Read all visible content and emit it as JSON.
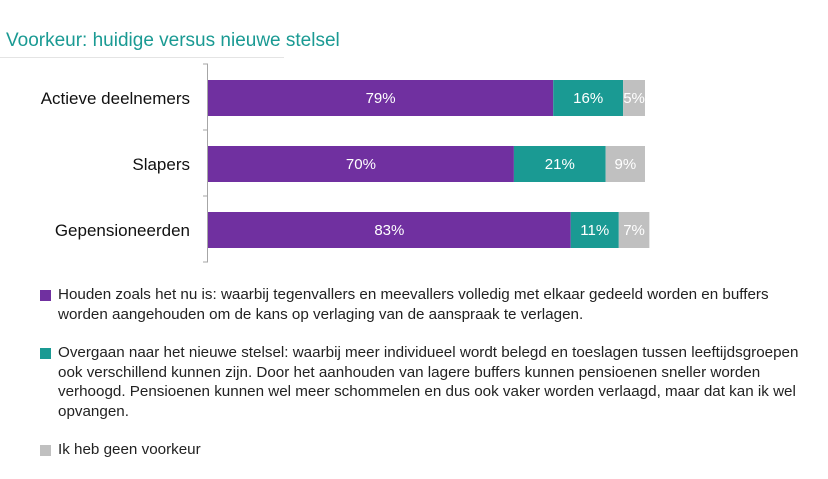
{
  "title": "Voorkeur: huidige versus nieuwe stelsel",
  "colors": {
    "series1": "#7030a0",
    "series2": "#1a9a93",
    "series3": "#c0c0c0"
  },
  "chart_data": {
    "type": "bar",
    "orientation": "horizontal",
    "stacked": true,
    "categories": [
      "Actieve deelnemers",
      "Slapers",
      "Gepensioneerden"
    ],
    "series": [
      {
        "name": "Houden zoals het nu is: waarbij tegenvallers en meevallers volledig met elkaar gedeeld worden en buffers worden aangehouden om de kans op verlaging van de aanspraak te verlagen.",
        "values": [
          79,
          70,
          83
        ],
        "labels": [
          "79%",
          "70%",
          "83%"
        ]
      },
      {
        "name": "Overgaan naar het nieuwe stelsel: waarbij meer individueel wordt belegd en toeslagen tussen leeftijdsgroepen ook verschillend kunnen zijn. Door het aanhouden van lagere buffers kunnen pensioenen sneller worden verhoogd. Pensioenen kunnen wel meer schommelen en dus ook vaker worden verlaagd, maar dat kan ik wel opvangen.",
        "values": [
          16,
          21,
          11
        ],
        "labels": [
          "16%",
          "21%",
          "11%"
        ]
      },
      {
        "name": "Ik heb geen voorkeur",
        "values": [
          5,
          9,
          7
        ],
        "labels": [
          "5%",
          "9%",
          "7%"
        ]
      }
    ],
    "xlim": [
      0,
      100
    ],
    "legend_position": "bottom"
  }
}
